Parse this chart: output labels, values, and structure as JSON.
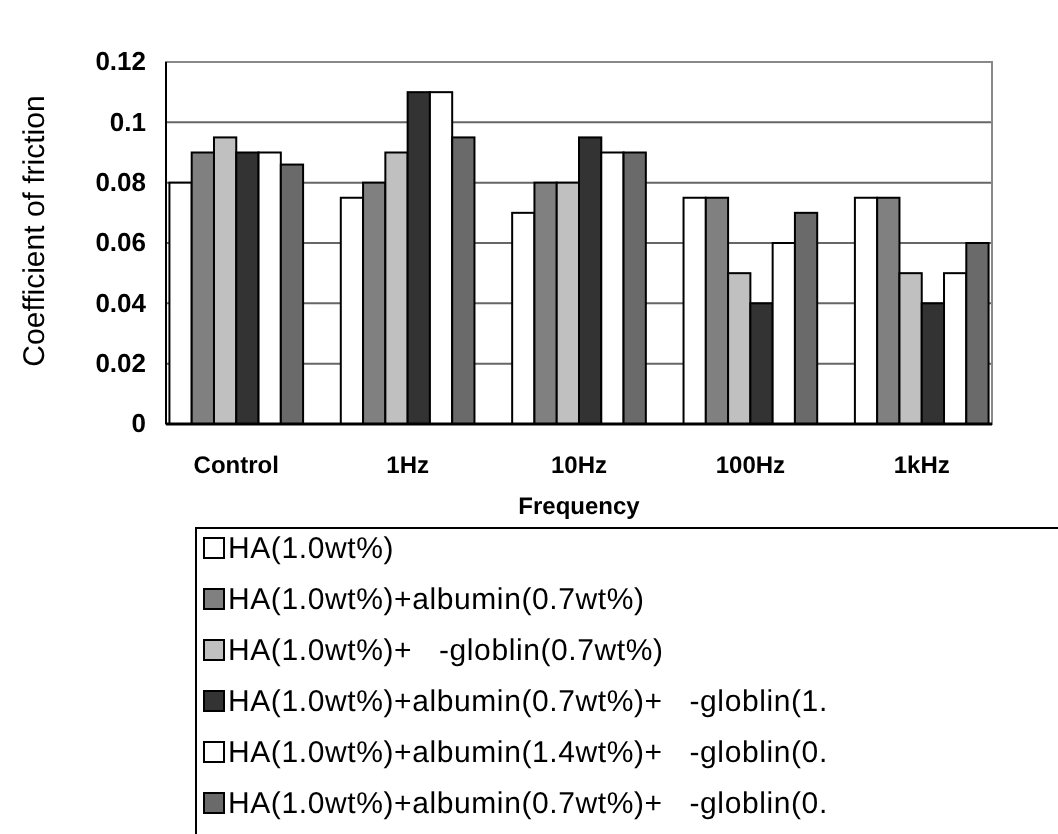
{
  "chart_data": {
    "type": "bar",
    "xlabel": "Frequency",
    "ylabel": "Coefficient of friction",
    "categories": [
      "Control",
      "1Hz",
      "10Hz",
      "100Hz",
      "1kHz"
    ],
    "series": [
      {
        "name": "HA(1.0wt%)",
        "color": "#ffffff",
        "values": [
          0.08,
          0.075,
          0.07,
          0.075,
          0.075
        ]
      },
      {
        "name": "HA(1.0wt%)+albumin(0.7wt%)",
        "color": "#808080",
        "values": [
          0.09,
          0.08,
          0.08,
          0.075,
          0.075
        ]
      },
      {
        "name": "HA(1.0wt%)+   -globlin(0.7wt%)",
        "color": "#c0c0c0",
        "values": [
          0.095,
          0.09,
          0.08,
          0.05,
          0.05
        ]
      },
      {
        "name": "HA(1.0wt%)+albumin(0.7wt%)+   -globlin(1.",
        "color": "#333333",
        "values": [
          0.09,
          0.11,
          0.095,
          0.04,
          0.04
        ]
      },
      {
        "name": "HA(1.0wt%)+albumin(1.4wt%)+   -globlin(0.",
        "color": "#ffffff",
        "values": [
          0.09,
          0.11,
          0.09,
          0.06,
          0.05
        ]
      },
      {
        "name": "HA(1.0wt%)+albumin(0.7wt%)+   -globlin(0.",
        "color": "#6a6a6a",
        "values": [
          0.086,
          0.095,
          0.09,
          0.07,
          0.06
        ]
      }
    ],
    "ylim": [
      0,
      0.12
    ],
    "yticks": [
      0,
      0.02,
      0.04,
      0.06,
      0.08,
      0.1,
      0.12
    ],
    "grid": "y",
    "legend": "bottom"
  }
}
